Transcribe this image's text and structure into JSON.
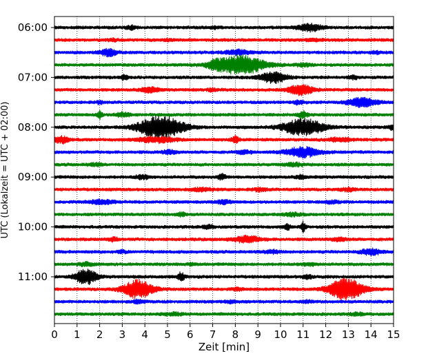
{
  "chart_data": {
    "type": "line",
    "title": "",
    "xlabel": "Zeit  [min]",
    "ylabel": "UTC (Lokalzeit = UTC + 02:00)",
    "xlim": [
      0,
      15
    ],
    "x_ticks": [
      "0",
      "1",
      "2",
      "3",
      "4",
      "5",
      "6",
      "7",
      "8",
      "9",
      "10",
      "11",
      "12",
      "13",
      "14",
      "15"
    ],
    "y_ticks": [
      "06:00",
      "07:00",
      "08:00",
      "09:00",
      "10:00",
      "11:00"
    ],
    "y_tick_traces": [
      0,
      4,
      8,
      12,
      16,
      20
    ],
    "trace_interval_min": 15,
    "grid": {
      "x": true,
      "y": false,
      "style": "dotted"
    },
    "colors": [
      "#000000",
      "#ff0000",
      "#0000ff",
      "#008000"
    ],
    "traces": [
      {
        "start": "06:00",
        "color": "#000000",
        "bursts": [
          [
            3.4,
            0.2,
            0.3
          ],
          [
            11.3,
            0.5,
            0.6
          ],
          [
            7.1,
            0.2,
            0.15
          ]
        ]
      },
      {
        "start": "06:15",
        "color": "#ff0000",
        "bursts": [
          [
            2.6,
            0.2,
            0.2
          ],
          [
            5.1,
            0.2,
            0.15
          ],
          [
            11.5,
            0.3,
            0.2
          ]
        ]
      },
      {
        "start": "06:30",
        "color": "#0000ff",
        "bursts": [
          [
            2.4,
            0.35,
            0.6
          ],
          [
            8.1,
            0.5,
            0.4
          ],
          [
            14.2,
            0.2,
            0.2
          ]
        ]
      },
      {
        "start": "06:45",
        "color": "#008000",
        "bursts": [
          [
            8.2,
            1.0,
            1.7
          ],
          [
            7.1,
            0.3,
            0.4
          ],
          [
            11.0,
            0.3,
            0.25
          ]
        ]
      },
      {
        "start": "07:00",
        "color": "#000000",
        "bursts": [
          [
            9.7,
            0.55,
            0.95
          ],
          [
            3.1,
            0.15,
            0.4
          ],
          [
            13.2,
            0.2,
            0.3
          ]
        ]
      },
      {
        "start": "07:15",
        "color": "#ff0000",
        "bursts": [
          [
            4.2,
            0.35,
            0.45
          ],
          [
            10.9,
            0.5,
            0.85
          ],
          [
            7.0,
            0.2,
            0.2
          ]
        ]
      },
      {
        "start": "07:30",
        "color": "#0000ff",
        "bursts": [
          [
            13.6,
            0.6,
            0.75
          ],
          [
            2.0,
            0.15,
            0.2
          ],
          [
            10.8,
            0.2,
            0.3
          ]
        ]
      },
      {
        "start": "07:45",
        "color": "#008000",
        "bursts": [
          [
            2.0,
            0.1,
            0.8
          ],
          [
            3.0,
            0.3,
            0.35
          ],
          [
            11.0,
            0.2,
            0.5
          ]
        ]
      },
      {
        "start": "08:00",
        "color": "#000000",
        "bursts": [
          [
            4.7,
            0.9,
            2.0
          ],
          [
            11.0,
            0.85,
            1.4
          ],
          [
            15.0,
            0.2,
            0.5
          ]
        ]
      },
      {
        "start": "08:15",
        "color": "#ff0000",
        "bursts": [
          [
            0.3,
            0.3,
            0.6
          ],
          [
            4.5,
            0.8,
            0.45
          ],
          [
            8.0,
            0.15,
            0.6
          ],
          [
            12.6,
            0.5,
            0.3
          ]
        ]
      },
      {
        "start": "08:30",
        "color": "#0000ff",
        "bursts": [
          [
            11.0,
            0.7,
            0.85
          ],
          [
            5.1,
            0.3,
            0.3
          ],
          [
            8.4,
            0.3,
            0.25
          ]
        ]
      },
      {
        "start": "08:45",
        "color": "#008000",
        "bursts": [
          [
            1.8,
            0.3,
            0.2
          ],
          [
            10.6,
            0.4,
            0.25
          ]
        ]
      },
      {
        "start": "09:00",
        "color": "#000000",
        "bursts": [
          [
            3.9,
            0.3,
            0.3
          ],
          [
            7.4,
            0.15,
            0.5
          ],
          [
            10.9,
            0.2,
            0.3
          ]
        ]
      },
      {
        "start": "09:15",
        "color": "#ff0000",
        "bursts": [
          [
            6.5,
            0.5,
            0.25
          ],
          [
            9.1,
            0.3,
            0.25
          ],
          [
            13.0,
            0.3,
            0.25
          ]
        ]
      },
      {
        "start": "09:30",
        "color": "#0000ff",
        "bursts": [
          [
            2.1,
            0.5,
            0.35
          ],
          [
            7.5,
            0.3,
            0.3
          ],
          [
            12.3,
            0.3,
            0.2
          ]
        ]
      },
      {
        "start": "09:45",
        "color": "#008000",
        "bursts": [
          [
            5.6,
            0.2,
            0.3
          ],
          [
            10.5,
            0.4,
            0.25
          ]
        ]
      },
      {
        "start": "10:00",
        "color": "#000000",
        "bursts": [
          [
            6.8,
            0.2,
            0.35
          ],
          [
            10.3,
            0.15,
            0.45
          ],
          [
            11.0,
            0.1,
            0.8
          ]
        ]
      },
      {
        "start": "10:15",
        "color": "#ff0000",
        "bursts": [
          [
            8.5,
            0.55,
            0.55
          ],
          [
            2.6,
            0.2,
            0.3
          ],
          [
            12.6,
            0.3,
            0.3
          ]
        ]
      },
      {
        "start": "10:30",
        "color": "#0000ff",
        "bursts": [
          [
            14.0,
            0.4,
            0.55
          ],
          [
            9.6,
            0.3,
            0.3
          ],
          [
            3.0,
            0.2,
            0.2
          ]
        ]
      },
      {
        "start": "10:45",
        "color": "#008000",
        "bursts": [
          [
            1.4,
            0.3,
            0.3
          ],
          [
            6.1,
            0.2,
            0.2
          ],
          [
            11.3,
            0.3,
            0.2
          ]
        ]
      },
      {
        "start": "11:00",
        "color": "#000000",
        "bursts": [
          [
            1.4,
            0.45,
            1.3
          ],
          [
            5.6,
            0.12,
            0.8
          ],
          [
            11.2,
            0.2,
            0.3
          ]
        ]
      },
      {
        "start": "11:15",
        "color": "#ff0000",
        "bursts": [
          [
            3.7,
            0.6,
            1.6
          ],
          [
            12.9,
            0.7,
            1.9
          ],
          [
            8.1,
            0.2,
            0.2
          ]
        ]
      },
      {
        "start": "11:30",
        "color": "#0000ff",
        "bursts": [
          [
            3.7,
            0.25,
            0.25
          ],
          [
            7.8,
            0.3,
            0.2
          ],
          [
            11.2,
            0.2,
            0.2
          ]
        ]
      },
      {
        "start": "11:45",
        "color": "#008000",
        "bursts": [
          [
            5.3,
            0.4,
            0.2
          ],
          [
            13.4,
            0.3,
            0.2
          ]
        ]
      }
    ]
  }
}
